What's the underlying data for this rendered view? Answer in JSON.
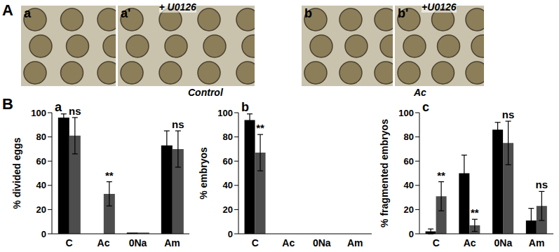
{
  "panel_a": {
    "label": "A",
    "images": [
      {
        "label": "a"
      },
      {
        "label": "a'",
        "treatment": "+ U0126"
      },
      {
        "label": "b"
      },
      {
        "label": "b'",
        "treatment": "+U0126"
      }
    ],
    "group_labels": [
      "Control",
      "Ac"
    ]
  },
  "panel_b_label": "B",
  "chart_data": [
    {
      "type": "bar",
      "title": "a",
      "y_label": "% divided eggs",
      "categories": [
        "C",
        "Ac",
        "0Na",
        "Am"
      ],
      "ylim": [
        0,
        100
      ],
      "yticks": [
        0,
        20,
        40,
        60,
        80,
        100
      ],
      "series": [
        {
          "color": "#000000",
          "values": [
            96,
            0,
            1,
            73
          ],
          "errors": [
            3,
            0,
            0,
            12
          ],
          "annotations": [
            null,
            null,
            null,
            null
          ]
        },
        {
          "color": "#4d4d4d",
          "values": [
            81,
            33,
            1,
            70
          ],
          "errors": [
            15,
            10,
            0,
            15
          ],
          "annotations": [
            "ns",
            "**",
            null,
            "ns"
          ]
        }
      ]
    },
    {
      "type": "bar",
      "title": "b",
      "y_label": "% embryos",
      "categories": [
        "C",
        "Ac",
        "0Na",
        "Am"
      ],
      "ylim": [
        0,
        100
      ],
      "yticks": [
        0,
        20,
        40,
        60,
        80,
        100
      ],
      "series": [
        {
          "color": "#000000",
          "values": [
            94,
            0,
            0,
            0
          ],
          "errors": [
            5,
            0,
            0,
            0
          ],
          "annotations": [
            null,
            null,
            null,
            null
          ]
        },
        {
          "color": "#4d4d4d",
          "values": [
            67,
            0,
            0,
            0
          ],
          "errors": [
            15,
            0,
            0,
            0
          ],
          "annotations": [
            "**",
            null,
            null,
            null
          ]
        }
      ]
    },
    {
      "type": "bar",
      "title": "c",
      "y_label": "% fragmented embryos",
      "categories": [
        "C",
        "Ac",
        "0Na",
        "Am"
      ],
      "ylim": [
        0,
        100
      ],
      "yticks": [
        0,
        20,
        40,
        60,
        80,
        100
      ],
      "series": [
        {
          "color": "#000000",
          "values": [
            2,
            50,
            86,
            11
          ],
          "errors": [
            2,
            15,
            6,
            10
          ],
          "annotations": [
            null,
            null,
            null,
            null
          ]
        },
        {
          "color": "#4d4d4d",
          "values": [
            31,
            7,
            75,
            23
          ],
          "errors": [
            12,
            5,
            18,
            12
          ],
          "annotations": [
            "**",
            "**",
            "ns",
            "ns"
          ]
        }
      ]
    }
  ]
}
